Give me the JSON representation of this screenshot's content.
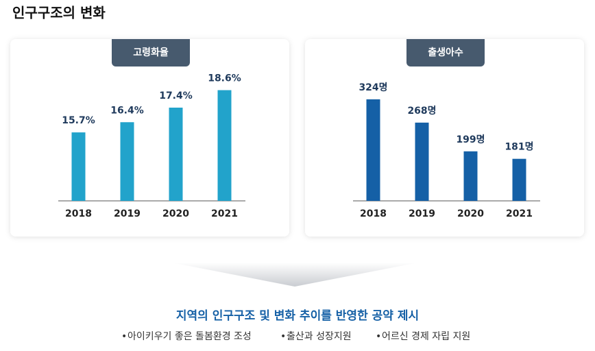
{
  "header": {
    "title": "인구구조의 변화"
  },
  "chart_data": [
    {
      "type": "bar",
      "title": "고령화율",
      "categories": [
        "2018",
        "2019",
        "2020",
        "2021"
      ],
      "values": [
        15.7,
        16.4,
        17.4,
        18.6
      ],
      "value_labels": [
        "15.7%",
        "16.4%",
        "17.4%",
        "18.6%"
      ],
      "color": "#22a3cb",
      "ylim": [
        11,
        19
      ]
    },
    {
      "type": "bar",
      "title": "출생아수",
      "categories": [
        "2018",
        "2019",
        "2020",
        "2021"
      ],
      "values": [
        324,
        268,
        199,
        181
      ],
      "value_labels": [
        "324명",
        "268명",
        "199명",
        "181명"
      ],
      "color": "#1560a6",
      "ylim": [
        80,
        360
      ]
    }
  ],
  "summary": {
    "heading": "지역의 인구구조 및 변화 추이를 반영한 공약 제시",
    "bullets": [
      "아이키우기 좋은 돌봄환경 조성",
      "출산과 성장지원",
      "어르신 경제 자립 지원"
    ]
  }
}
